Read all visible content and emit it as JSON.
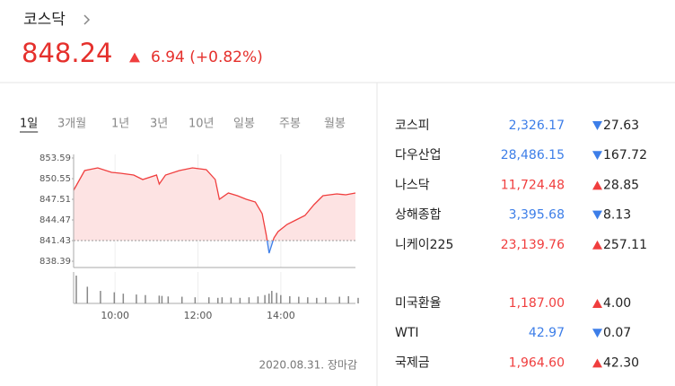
{
  "header": {
    "title": "코스닥",
    "price": "848.24",
    "direction": "up",
    "change": "6.94 (+0.82%)"
  },
  "tabs": {
    "items": [
      "1일",
      "3개월",
      "1년",
      "3년",
      "10년",
      "일봉",
      "주봉",
      "월봉"
    ],
    "active": 0
  },
  "chart_data": {
    "type": "line",
    "x": [
      0,
      16,
      35,
      55,
      68,
      87,
      100,
      120,
      124,
      133,
      153,
      172,
      192,
      205,
      211,
      224,
      237,
      250,
      263,
      273,
      279,
      283,
      290,
      296,
      309,
      322,
      335,
      348,
      361,
      381,
      394,
      408
    ],
    "values": [
      848.83,
      851.74,
      852.14,
      851.48,
      851.34,
      851.08,
      850.42,
      851.08,
      849.76,
      851.08,
      851.74,
      852.14,
      851.87,
      850.42,
      847.51,
      848.44,
      848.04,
      847.51,
      847.11,
      845.39,
      842.22,
      839.58,
      841.83,
      842.75,
      843.81,
      844.47,
      845.14,
      846.72,
      848.04,
      848.3,
      848.17,
      848.44
    ],
    "volume": [
      100,
      60,
      45,
      40,
      35,
      32,
      30,
      28,
      27,
      25,
      24,
      22,
      22,
      20,
      22,
      21,
      20,
      22,
      25,
      30,
      35,
      45,
      38,
      30,
      26,
      24,
      22,
      20,
      22,
      24,
      26,
      20
    ],
    "reference": 841.43,
    "up_color": "#f03e3e",
    "down_color": "#3d7ee8",
    "xlim": [
      0,
      408
    ],
    "ylim": [
      837.47,
      854.12
    ],
    "volume_lim": [
      0,
      100
    ],
    "yticks": [
      853.59,
      850.55,
      847.51,
      844.47,
      841.43,
      838.39
    ],
    "xticks": [
      {
        "value": 60,
        "label": "10:00"
      },
      {
        "value": 180,
        "label": "12:00"
      },
      {
        "value": 300,
        "label": "14:00"
      }
    ]
  },
  "footer": {
    "date": "2020.08.31. 장마감"
  },
  "indices": {
    "groups": [
      [
        {
          "name": "코스피",
          "value": "2,326.17",
          "change": "27.63",
          "direction": "down"
        },
        {
          "name": "다우산업",
          "value": "28,486.15",
          "change": "167.72",
          "direction": "down"
        },
        {
          "name": "나스닥",
          "value": "11,724.48",
          "change": "28.85",
          "direction": "up"
        },
        {
          "name": "상해종합",
          "value": "3,395.68",
          "change": "8.13",
          "direction": "down"
        },
        {
          "name": "니케이225",
          "value": "23,139.76",
          "change": "257.11",
          "direction": "up"
        }
      ],
      [
        {
          "name": "미국환율",
          "value": "1,187.00",
          "change": "4.00",
          "direction": "up"
        },
        {
          "name": "WTI",
          "value": "42.97",
          "change": "0.07",
          "direction": "down"
        },
        {
          "name": "국제금",
          "value": "1,964.60",
          "change": "42.30",
          "direction": "up"
        }
      ]
    ]
  }
}
